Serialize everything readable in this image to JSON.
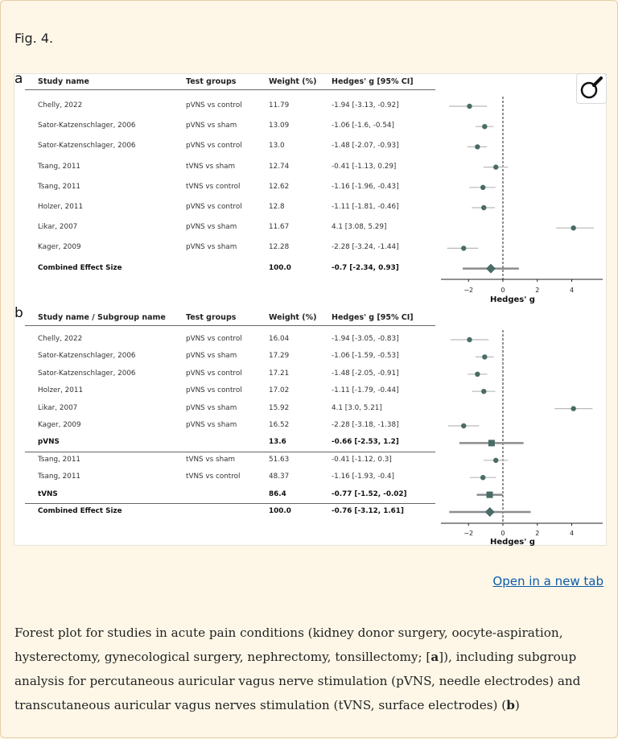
{
  "figure_label": "Fig. 4.",
  "open_link": "Open in a new tab",
  "caption_html": "Forest plot for studies in acute pain conditions (kidney donor surgery, oocyte-aspiration, hysterectomy, gynecological surgery, nephrectomy, tonsillectomy; [<b>a</b>]), including subgroup analysis for percutaneous auricular vagus nerve stimulation (pVNS, needle electrodes) and transcutaneous auricular vagus nerves stimulation (tVNS, surface electrodes) (<b>b</b>)",
  "magnifier_icon": "magnifier-icon",
  "chart_data": [
    {
      "type": "forest",
      "panel": "a",
      "headers": [
        "Study name",
        "Test groups",
        "Weight (%)",
        "Hedges' g [95% CI]"
      ],
      "rows": [
        {
          "study": "Chelly, 2022",
          "group": "pVNS vs control",
          "weight": "11.79",
          "ci_text": "-1.94 [-3.13, -0.92]",
          "g": -1.94,
          "lo": -3.13,
          "hi": -0.92,
          "marker": "point"
        },
        {
          "study": "Sator-Katzenschlager, 2006",
          "group": "pVNS vs sham",
          "weight": "13.09",
          "ci_text": "-1.06 [-1.6, -0.54]",
          "g": -1.06,
          "lo": -1.6,
          "hi": -0.54,
          "marker": "point"
        },
        {
          "study": "Sator-Katzenschlager, 2006",
          "group": "pVNS vs control",
          "weight": "13.0",
          "ci_text": "-1.48 [-2.07, -0.93]",
          "g": -1.48,
          "lo": -2.07,
          "hi": -0.93,
          "marker": "point"
        },
        {
          "study": "Tsang, 2011",
          "group": "tVNS vs sham",
          "weight": "12.74",
          "ci_text": "-0.41 [-1.13, 0.29]",
          "g": -0.41,
          "lo": -1.13,
          "hi": 0.29,
          "marker": "point"
        },
        {
          "study": "Tsang, 2011",
          "group": "tVNS vs control",
          "weight": "12.62",
          "ci_text": "-1.16 [-1.96, -0.43]",
          "g": -1.16,
          "lo": -1.96,
          "hi": -0.43,
          "marker": "point"
        },
        {
          "study": "Holzer, 2011",
          "group": "pVNS vs control",
          "weight": "12.8",
          "ci_text": "-1.11 [-1.81, -0.46]",
          "g": -1.11,
          "lo": -1.81,
          "hi": -0.46,
          "marker": "point"
        },
        {
          "study": "Likar, 2007",
          "group": "pVNS vs sham",
          "weight": "11.67",
          "ci_text": "4.1 [3.08, 5.29]",
          "g": 4.1,
          "lo": 3.08,
          "hi": 5.29,
          "marker": "point"
        },
        {
          "study": "Kager, 2009",
          "group": "pVNS vs sham",
          "weight": "12.28",
          "ci_text": "-2.28 [-3.24, -1.44]",
          "g": -2.28,
          "lo": -3.24,
          "hi": -1.44,
          "marker": "point"
        },
        {
          "study": "Combined Effect Size",
          "group": "",
          "weight": "100.0",
          "ci_text": "-0.7 [-2.34, 0.93]",
          "g": -0.7,
          "lo": -2.34,
          "hi": 0.93,
          "marker": "diamond",
          "bold": true
        }
      ],
      "xlabel": "Hedges' g",
      "xticks": [
        -2,
        0,
        2,
        4
      ],
      "xlim": [
        -3.6,
        5.8
      ]
    },
    {
      "type": "forest",
      "panel": "b",
      "headers": [
        "Study name / Subgroup name",
        "Test groups",
        "Weight (%)",
        "Hedges' g [95% CI]"
      ],
      "rows": [
        {
          "study": "Chelly, 2022",
          "group": "pVNS vs control",
          "weight": "16.04",
          "ci_text": "-1.94 [-3.05, -0.83]",
          "g": -1.94,
          "lo": -3.05,
          "hi": -0.83,
          "marker": "point"
        },
        {
          "study": "Sator-Katzenschlager, 2006",
          "group": "pVNS vs sham",
          "weight": "17.29",
          "ci_text": "-1.06 [-1.59, -0.53]",
          "g": -1.06,
          "lo": -1.59,
          "hi": -0.53,
          "marker": "point"
        },
        {
          "study": "Sator-Katzenschlager, 2006",
          "group": "pVNS vs control",
          "weight": "17.21",
          "ci_text": "-1.48 [-2.05, -0.91]",
          "g": -1.48,
          "lo": -2.05,
          "hi": -0.91,
          "marker": "point"
        },
        {
          "study": "Holzer, 2011",
          "group": "pVNS vs control",
          "weight": "17.02",
          "ci_text": "-1.11 [-1.79, -0.44]",
          "g": -1.11,
          "lo": -1.79,
          "hi": -0.44,
          "marker": "point"
        },
        {
          "study": "Likar, 2007",
          "group": "pVNS vs sham",
          "weight": "15.92",
          "ci_text": "4.1 [3.0, 5.21]",
          "g": 4.1,
          "lo": 3.0,
          "hi": 5.21,
          "marker": "point"
        },
        {
          "study": "Kager, 2009",
          "group": "pVNS vs sham",
          "weight": "16.52",
          "ci_text": "-2.28 [-3.18, -1.38]",
          "g": -2.28,
          "lo": -3.18,
          "hi": -1.38,
          "marker": "point"
        },
        {
          "study": "pVNS",
          "group": "",
          "weight": "13.6",
          "ci_text": "-0.66 [-2.53, 1.2]",
          "g": -0.66,
          "lo": -2.53,
          "hi": 1.2,
          "marker": "square",
          "bold": true,
          "line_after": true
        },
        {
          "study": "Tsang, 2011",
          "group": "tVNS vs sham",
          "weight": "51.63",
          "ci_text": "-0.41 [-1.12, 0.3]",
          "g": -0.41,
          "lo": -1.12,
          "hi": 0.3,
          "marker": "point"
        },
        {
          "study": "Tsang, 2011",
          "group": "tVNS vs control",
          "weight": "48.37",
          "ci_text": "-1.16 [-1.93, -0.4]",
          "g": -1.16,
          "lo": -1.93,
          "hi": -0.4,
          "marker": "point"
        },
        {
          "study": "tVNS",
          "group": "",
          "weight": "86.4",
          "ci_text": "-0.77 [-1.52, -0.02]",
          "g": -0.77,
          "lo": -1.52,
          "hi": -0.02,
          "marker": "square",
          "bold": true,
          "line_after": true
        },
        {
          "study": "Combined Effect Size",
          "group": "",
          "weight": "100.0",
          "ci_text": "-0.76 [-3.12, 1.61]",
          "g": -0.76,
          "lo": -3.12,
          "hi": 1.61,
          "marker": "diamond",
          "bold": true
        }
      ],
      "xlabel": "Hedges' g",
      "xticks": [
        -2,
        0,
        2,
        4
      ],
      "xlim": [
        -3.6,
        5.8
      ]
    }
  ],
  "colors": {
    "marker": "#4a6b66",
    "ci_line": "#b9b9b9",
    "summary_line": "#8c8c8c",
    "reference": "#222222",
    "link": "#0b5cad"
  }
}
